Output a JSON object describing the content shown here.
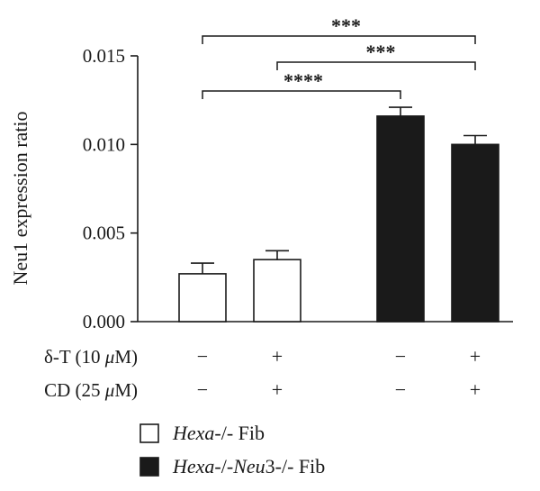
{
  "chart_data": {
    "type": "bar",
    "ylabel": "Neu1 expression ratio",
    "ylim": [
      0,
      0.015
    ],
    "yticks": [
      "0.000",
      "0.005",
      "0.010",
      "0.015"
    ],
    "ytick_values": [
      0,
      0.005,
      0.01,
      0.015
    ],
    "grid": false,
    "bars": [
      {
        "group": "Hexa-/- Fib",
        "value": 0.0027,
        "error": 0.0006,
        "fill": "white",
        "dT": "−",
        "CD": "−"
      },
      {
        "group": "Hexa-/- Fib",
        "value": 0.0035,
        "error": 0.0005,
        "fill": "white",
        "dT": "+",
        "CD": "+"
      },
      {
        "group": "Hexa-/-Neu3-/- Fib",
        "value": 0.0116,
        "error": 0.0005,
        "fill": "black",
        "dT": "−",
        "CD": "−"
      },
      {
        "group": "Hexa-/-Neu3-/- Fib",
        "value": 0.01,
        "error": 0.0005,
        "fill": "black",
        "dT": "+",
        "CD": "+"
      }
    ],
    "conditions": [
      {
        "label_main": "δ-T (10 ",
        "label_italic": "μ",
        "label_tail": "M)"
      },
      {
        "label_main": "CD (25 ",
        "label_italic": "μ",
        "label_tail": "M)"
      }
    ],
    "significance": [
      {
        "from": 0,
        "to": 3,
        "label": "***"
      },
      {
        "from": 1,
        "to": 3,
        "label": "***"
      },
      {
        "from": 0,
        "to": 2,
        "label": "****"
      }
    ],
    "legend": [
      {
        "italic": "Hexa",
        "text": "-/- Fib",
        "fill": "white"
      },
      {
        "italic": "Hexa",
        "mid": "-/-",
        "italic2": "Neu",
        "text": "3-/- Fib",
        "fill": "black"
      }
    ],
    "legend_position": "bottom",
    "colors": {
      "filled": "#1a1a1a",
      "open": "#ffffff",
      "stroke": "#1a1a1a"
    }
  }
}
